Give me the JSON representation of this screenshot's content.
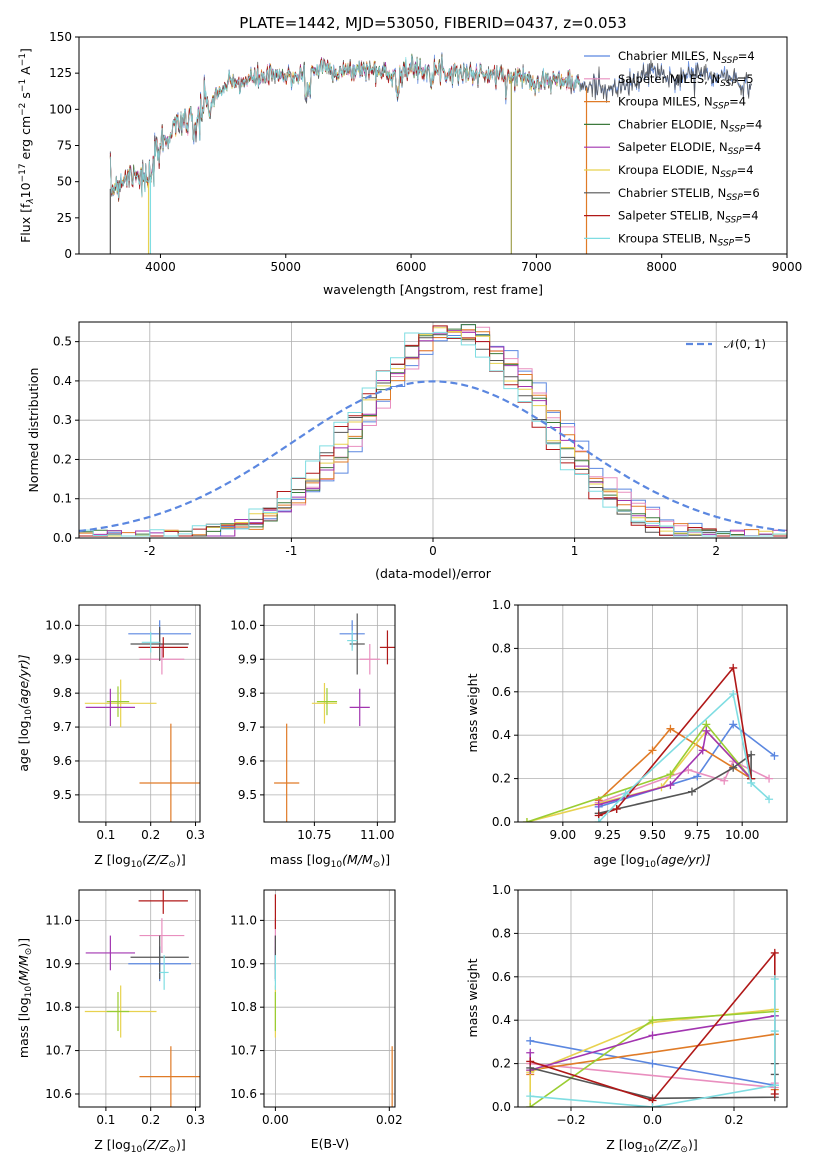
{
  "colors": {
    "chabrier_miles": "#5b87e0",
    "salpeter_miles": "#e98fbf",
    "kroupa_miles": "#e07b27",
    "chabrier_elodie": "#3d7a3d",
    "salpeter_elodie": "#a235b0",
    "kroupa_elodie": "#e8d24f",
    "chabrier_stelib": "#555555",
    "salpeter_stelib": "#b01818",
    "kroupa_stelib": "#7fdde2",
    "lime": "#9acd32",
    "normal": "#5b87e0"
  },
  "chart_data": [
    {
      "id": "spectrum",
      "type": "line",
      "title": "PLATE=1442, MJD=53050, FIBERID=0437, z=0.053",
      "xlabel": "wavelength [Angstrom, rest frame]",
      "ylabel": "Flux [f",
      "ylabel_parts": [
        "Flux [f",
        "λ",
        "10",
        "−17",
        " erg cm",
        "−2",
        " s",
        "−1",
        " A",
        "−1",
        "]"
      ],
      "xlim": [
        3350,
        9000
      ],
      "ylim": [
        0,
        150
      ],
      "xticks": [
        4000,
        5000,
        6000,
        7000,
        8000,
        9000
      ],
      "yticks": [
        0,
        25,
        50,
        75,
        100,
        125,
        150
      ],
      "legend": [
        {
          "label": "Chabrier MILES, N",
          "sub": "SSP",
          "suffix": "=4",
          "color": "#5b87e0"
        },
        {
          "label": "Salpeter MILES, N",
          "sub": "SSP",
          "suffix": "=5",
          "color": "#e98fbf"
        },
        {
          "label": "Kroupa MILES, N",
          "sub": "SSP",
          "suffix": "=4",
          "color": "#e07b27"
        },
        {
          "label": "Chabrier ELODIE, N",
          "sub": "SSP",
          "suffix": "=4",
          "color": "#3d7a3d"
        },
        {
          "label": "Salpeter ELODIE, N",
          "sub": "SSP",
          "suffix": "=4",
          "color": "#a235b0"
        },
        {
          "label": "Kroupa ELODIE, N",
          "sub": "SSP",
          "suffix": "=4",
          "color": "#e8d24f"
        },
        {
          "label": "Chabrier STELIB, N",
          "sub": "SSP",
          "suffix": "=6",
          "color": "#555555"
        },
        {
          "label": "Salpeter STELIB, N",
          "sub": "SSP",
          "suffix": "=4",
          "color": "#b01818"
        },
        {
          "label": "Kroupa STELIB, N",
          "sub": "SSP",
          "suffix": "=5",
          "color": "#7fdde2"
        }
      ],
      "continuum": {
        "x": [
          3600,
          3700,
          3800,
          3900,
          4000,
          4100,
          4200,
          4300,
          4400,
          4500,
          4600,
          4700,
          4800,
          4900,
          5000,
          5100,
          5200,
          5300,
          5400,
          5500,
          5600,
          5700,
          5800,
          5900,
          6000,
          6100,
          6200,
          6300,
          6400,
          6500,
          6600,
          6700,
          6800,
          6900,
          7000,
          7100,
          7200,
          7300,
          7400,
          7500,
          7600,
          7700,
          7800,
          7900,
          8000,
          8100,
          8200,
          8300,
          8400,
          8500,
          8600,
          8700
        ],
        "y": [
          45,
          52,
          58,
          48,
          74,
          88,
          96,
          98,
          104,
          115,
          118,
          120,
          122,
          123,
          122,
          124,
          126,
          130,
          127,
          126,
          128,
          127,
          125,
          124,
          128,
          128,
          127,
          126,
          126,
          124,
          124,
          123,
          122,
          122,
          120,
          120,
          120,
          118,
          115,
          117,
          113,
          116,
          118,
          128,
          124,
          120,
          124,
          126,
          121,
          124,
          119,
          116
        ]
      },
      "spikes": [
        {
          "x": 3600,
          "y": 0,
          "color": "#555555"
        },
        {
          "x": 3905,
          "y": 0,
          "color": "#e8d24f"
        },
        {
          "x": 3920,
          "y": 0,
          "color": "#7fdde2"
        },
        {
          "x": 6800,
          "y": 0,
          "color": "#a0a050"
        },
        {
          "x": 7400,
          "y": 0,
          "color": "#e07b27"
        }
      ]
    },
    {
      "id": "residuals",
      "type": "histogram",
      "xlabel": "(data-model)/error",
      "ylabel": "Normed distribution",
      "xlim": [
        -2.5,
        2.5
      ],
      "ylim": [
        0,
        0.55
      ],
      "xticks": [
        -2,
        -1,
        0,
        1,
        2
      ],
      "yticks": [
        0.0,
        0.1,
        0.2,
        0.3,
        0.4,
        0.5
      ],
      "bin_width": 0.1,
      "legend": [
        {
          "label": "𝒩(0, 1)",
          "color": "#5b87e0",
          "style": "dashed"
        }
      ],
      "normal": {
        "mean": 0,
        "sigma": 1
      }
    },
    {
      "id": "age_vs_Z",
      "type": "scatter",
      "xlabel": "Z [log",
      "xlabel_parts": [
        "Z [log",
        "10",
        "(Z/Z",
        "⊙",
        ")]"
      ],
      "ylabel": "age  [log",
      "ylabel_parts": [
        "age  [log",
        "10",
        "(age/yr)]"
      ],
      "xlim": [
        0.04,
        0.31
      ],
      "ylim": [
        9.42,
        10.06
      ],
      "xticks": [
        0.1,
        0.2,
        0.3
      ],
      "yticks": [
        9.5,
        9.6,
        9.7,
        9.8,
        9.9,
        10.0
      ],
      "points": [
        {
          "x": 0.22,
          "y": 9.975,
          "xerr": 0.07,
          "yerr": 0.04,
          "color": "#5b87e0"
        },
        {
          "x": 0.225,
          "y": 9.9,
          "xerr": 0.05,
          "yerr": 0.045,
          "color": "#e98fbf"
        },
        {
          "x": 0.245,
          "y": 9.535,
          "xerr": 0.07,
          "yerr": 0.175,
          "color": "#e07b27"
        },
        {
          "x": 0.133,
          "y": 9.77,
          "xerr": 0.08,
          "yerr": 0.07,
          "color": "#e8d24f"
        },
        {
          "x": 0.127,
          "y": 9.775,
          "xerr": 0.025,
          "yerr": 0.045,
          "color": "#9acd32"
        },
        {
          "x": 0.11,
          "y": 9.758,
          "xerr": 0.055,
          "yerr": 0.055,
          "color": "#a235b0"
        },
        {
          "x": 0.22,
          "y": 9.945,
          "xerr": 0.065,
          "yerr": 0.05,
          "color": "#555555"
        },
        {
          "x": 0.228,
          "y": 9.935,
          "xerr": 0.055,
          "yerr": 0.03,
          "color": "#b01818"
        },
        {
          "x": 0.2,
          "y": 9.95,
          "xerr": 0.02,
          "yerr": 0.03,
          "color": "#7fdde2"
        }
      ]
    },
    {
      "id": "age_vs_mass",
      "type": "scatter",
      "xlabel": "mass [log",
      "xlabel_parts": [
        "mass [log",
        "10",
        "(M/M",
        "⊙",
        ")]"
      ],
      "xlim": [
        10.55,
        11.07
      ],
      "ylim": [
        9.42,
        10.06
      ],
      "xticks": [
        10.75,
        11.0
      ],
      "xtick_labels": [
        "10.75",
        "11.00"
      ],
      "yticks": [
        9.5,
        9.6,
        9.7,
        9.8,
        9.9,
        10.0
      ],
      "points": [
        {
          "x": 10.9,
          "y": 9.975,
          "xerr": 0.05,
          "yerr": 0.04,
          "color": "#5b87e0"
        },
        {
          "x": 10.97,
          "y": 9.9,
          "xerr": 0.04,
          "yerr": 0.045,
          "color": "#e98fbf"
        },
        {
          "x": 10.64,
          "y": 9.535,
          "xerr": 0.05,
          "yerr": 0.175,
          "color": "#e07b27"
        },
        {
          "x": 10.79,
          "y": 9.77,
          "xerr": 0.05,
          "yerr": 0.06,
          "color": "#e8d24f"
        },
        {
          "x": 10.8,
          "y": 9.775,
          "xerr": 0.04,
          "yerr": 0.04,
          "color": "#9acd32"
        },
        {
          "x": 10.93,
          "y": 9.758,
          "xerr": 0.04,
          "yerr": 0.055,
          "color": "#a235b0"
        },
        {
          "x": 10.92,
          "y": 9.945,
          "xerr": 0.03,
          "yerr": 0.09,
          "color": "#555555"
        },
        {
          "x": 11.04,
          "y": 9.935,
          "xerr": 0.03,
          "yerr": 0.05,
          "color": "#b01818"
        },
        {
          "x": 10.9,
          "y": 9.955,
          "xerr": 0.02,
          "yerr": 0.03,
          "color": "#7fdde2"
        }
      ]
    },
    {
      "id": "massweight_vs_age",
      "type": "line",
      "xlabel": "age  [log",
      "xlabel_parts": [
        "age  [log",
        "10",
        "(age/yr)]"
      ],
      "ylabel": "mass weight",
      "xlim": [
        8.75,
        10.25
      ],
      "ylim": [
        0,
        1
      ],
      "xticks": [
        9.0,
        9.25,
        9.5,
        9.75,
        10.0
      ],
      "xtick_labels": [
        "9.00",
        "9.25",
        "9.50",
        "9.75",
        "10.00"
      ],
      "yticks": [
        0.0,
        0.2,
        0.4,
        0.6,
        0.8,
        1.0
      ],
      "series": [
        {
          "color": "#5b87e0",
          "x": [
            9.2,
            9.75,
            9.95,
            10.18
          ],
          "y": [
            0.07,
            0.21,
            0.45,
            0.305
          ]
        },
        {
          "color": "#e98fbf",
          "x": [
            9.2,
            9.7,
            9.9,
            9.95,
            10.15
          ],
          "y": [
            0.09,
            0.24,
            0.19,
            0.28,
            0.2
          ]
        },
        {
          "color": "#e07b27",
          "x": [
            9.2,
            9.5,
            9.6,
            10.05
          ],
          "y": [
            0.1,
            0.33,
            0.43,
            0.2
          ]
        },
        {
          "color": "#e8d24f",
          "x": [
            8.8,
            9.55,
            9.8,
            10.05
          ],
          "y": [
            0.0,
            0.16,
            0.42,
            0.2
          ]
        },
        {
          "color": "#9acd32",
          "x": [
            8.8,
            9.6,
            9.8,
            10.05
          ],
          "y": [
            0.0,
            0.22,
            0.45,
            0.2
          ]
        },
        {
          "color": "#a235b0",
          "x": [
            9.2,
            9.6,
            9.78,
            9.8,
            10.05
          ],
          "y": [
            0.08,
            0.17,
            0.33,
            0.42,
            0.2
          ]
        },
        {
          "color": "#555555",
          "x": [
            9.2,
            9.3,
            9.72,
            9.95,
            10.05,
            10.05
          ],
          "y": [
            0.04,
            0.06,
            0.14,
            0.25,
            0.31,
            0.2
          ]
        },
        {
          "color": "#b01818",
          "x": [
            9.2,
            9.3,
            9.95,
            10.05
          ],
          "y": [
            0.03,
            0.06,
            0.71,
            0.2
          ]
        },
        {
          "color": "#7fdde2",
          "x": [
            9.2,
            9.35,
            9.95,
            10.05,
            10.15
          ],
          "y": [
            0.0,
            0.13,
            0.59,
            0.18,
            0.105
          ]
        }
      ]
    },
    {
      "id": "mass_vs_Z",
      "type": "scatter",
      "xlabel": "Z [log",
      "xlabel_parts": [
        "Z [log",
        "10",
        "(Z/Z",
        "⊙",
        ")]"
      ],
      "ylabel": "mass [log",
      "ylabel_parts": [
        "mass [log",
        "10",
        "(M/M",
        "⊙",
        ")]"
      ],
      "xlim": [
        0.04,
        0.31
      ],
      "ylim": [
        10.57,
        11.07
      ],
      "xticks": [
        0.1,
        0.2,
        0.3
      ],
      "yticks": [
        10.6,
        10.7,
        10.8,
        10.9,
        11.0
      ],
      "points": [
        {
          "x": 0.22,
          "y": 10.9,
          "xerr": 0.07,
          "yerr": 0.04,
          "color": "#5b87e0"
        },
        {
          "x": 0.225,
          "y": 10.965,
          "xerr": 0.05,
          "yerr": 0.04,
          "color": "#e98fbf"
        },
        {
          "x": 0.245,
          "y": 10.64,
          "xerr": 0.07,
          "yerr": 0.07,
          "color": "#e07b27"
        },
        {
          "x": 0.133,
          "y": 10.79,
          "xerr": 0.08,
          "yerr": 0.06,
          "color": "#e8d24f"
        },
        {
          "x": 0.127,
          "y": 10.79,
          "xerr": 0.025,
          "yerr": 0.045,
          "color": "#9acd32"
        },
        {
          "x": 0.11,
          "y": 10.925,
          "xerr": 0.055,
          "yerr": 0.04,
          "color": "#a235b0"
        },
        {
          "x": 0.22,
          "y": 10.915,
          "xerr": 0.065,
          "yerr": 0.05,
          "color": "#555555"
        },
        {
          "x": 0.228,
          "y": 11.045,
          "xerr": 0.055,
          "yerr": 0.03,
          "color": "#b01818"
        },
        {
          "x": 0.23,
          "y": 10.88,
          "xerr": 0.01,
          "yerr": 0.04,
          "color": "#7fdde2"
        }
      ]
    },
    {
      "id": "mass_vs_ebv",
      "type": "scatter",
      "xlabel": "E(B-V)",
      "xlim": [
        -0.002,
        0.021
      ],
      "ylim": [
        10.57,
        11.07
      ],
      "xticks": [
        0.0,
        0.02
      ],
      "xtick_labels": [
        "0.00",
        "0.02"
      ],
      "yticks": [
        10.6,
        10.7,
        10.8,
        10.9,
        11.0
      ],
      "points": [
        {
          "x": 0.0,
          "y": 10.9,
          "xerr": 0,
          "yerr": 0.04,
          "color": "#5b87e0"
        },
        {
          "x": 0.0,
          "y": 10.965,
          "xerr": 0,
          "yerr": 0.04,
          "color": "#e98fbf"
        },
        {
          "x": 0.0205,
          "y": 10.64,
          "xerr": 0,
          "yerr": 0.07,
          "color": "#e07b27"
        },
        {
          "x": 0.0,
          "y": 10.79,
          "xerr": 0,
          "yerr": 0.06,
          "color": "#e8d24f"
        },
        {
          "x": 0.0,
          "y": 10.79,
          "xerr": 0,
          "yerr": 0.045,
          "color": "#9acd32"
        },
        {
          "x": 0.0,
          "y": 10.925,
          "xerr": 0,
          "yerr": 0.04,
          "color": "#a235b0"
        },
        {
          "x": 0.0,
          "y": 10.915,
          "xerr": 0,
          "yerr": 0.05,
          "color": "#555555"
        },
        {
          "x": 0.0,
          "y": 11.02,
          "xerr": 0,
          "yerr": 0.04,
          "color": "#b01818"
        },
        {
          "x": 0.0,
          "y": 10.88,
          "xerr": 0,
          "yerr": 0.04,
          "color": "#7fdde2"
        }
      ]
    },
    {
      "id": "massweight_vs_Z",
      "type": "line",
      "xlabel": "Z [log",
      "xlabel_parts": [
        "Z [log",
        "10",
        "(Z/Z",
        "⊙",
        ")]"
      ],
      "ylabel": "mass weight",
      "xlim": [
        -0.33,
        0.33
      ],
      "ylim": [
        0,
        1
      ],
      "xticks": [
        -0.2,
        0.0,
        0.2
      ],
      "xtick_labels": [
        "−0.2",
        "0.0",
        "0.2"
      ],
      "yticks": [
        0.0,
        0.2,
        0.4,
        0.6,
        0.8,
        1.0
      ],
      "series": [
        {
          "color": "#5b87e0",
          "x": [
            -0.3,
            0.0,
            0.3,
            0.3
          ],
          "y": [
            0.305,
            0.2,
            0.1,
            0.42
          ]
        },
        {
          "color": "#e98fbf",
          "x": [
            -0.3,
            0.3,
            0.3
          ],
          "y": [
            0.2,
            0.09,
            0.11
          ]
        },
        {
          "color": "#e07b27",
          "x": [
            -0.3,
            -0.3,
            0.3,
            0.3
          ],
          "y": [
            0.15,
            0.17,
            0.335,
            0.08
          ]
        },
        {
          "color": "#e8d24f",
          "x": [
            -0.3,
            -0.3,
            0.0,
            0.3
          ],
          "y": [
            0.0,
            0.16,
            0.39,
            0.45
          ]
        },
        {
          "color": "#9acd32",
          "x": [
            -0.3,
            0.0,
            0.3
          ],
          "y": [
            0.0,
            0.4,
            0.44
          ]
        },
        {
          "color": "#a235b0",
          "x": [
            -0.3,
            -0.3,
            0.0,
            0.3
          ],
          "y": [
            0.25,
            0.17,
            0.33,
            0.42
          ]
        },
        {
          "color": "#555555",
          "x": [
            -0.3,
            0.0,
            0.3,
            0.3,
            0.3
          ],
          "y": [
            0.18,
            0.04,
            0.045,
            0.15,
            0.2
          ]
        },
        {
          "color": "#b01818",
          "x": [
            -0.3,
            0.0,
            0.3,
            0.3
          ],
          "y": [
            0.21,
            0.03,
            0.71,
            0.06
          ]
        },
        {
          "color": "#7fdde2",
          "x": [
            -0.3,
            0.0,
            0.3,
            0.3,
            0.3
          ],
          "y": [
            0.05,
            0.0,
            0.1,
            0.59,
            0.35
          ]
        }
      ]
    }
  ]
}
